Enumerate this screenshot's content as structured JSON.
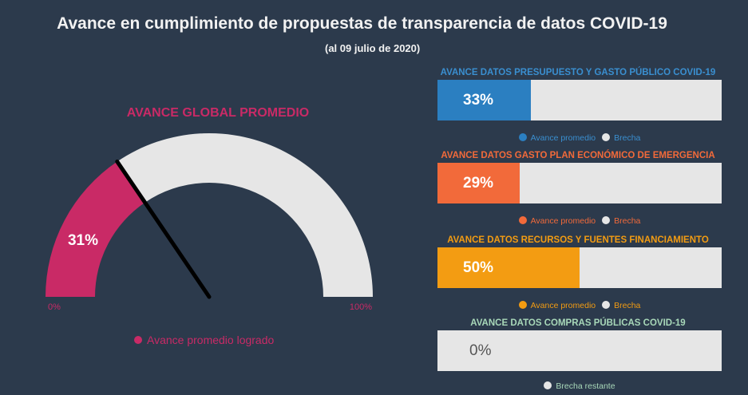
{
  "title": "Avance en cumplimiento de propuestas de transparencia de datos COVID-19",
  "subtitle": "(al 09 julio de 2020)",
  "chart_data": [
    {
      "type": "gauge",
      "title": "AVANCE GLOBAL PROMEDIO",
      "value": 31,
      "value_label": "31%",
      "min_label": "0%",
      "max_label": "100%",
      "range": [
        0,
        100
      ],
      "legend": [
        "Avance promedio logrado"
      ],
      "colors": {
        "fill": "#c92a66",
        "remainder": "#e6e6e6",
        "needle": "#000000",
        "title": "#c92a66"
      }
    },
    {
      "type": "bar",
      "title": "AVANCE DATOS PRESUPUESTO Y GASTO PÚBLICO COVID-19",
      "value": 33,
      "value_label": "33%",
      "legend": [
        "Avance promedio",
        "Brecha"
      ],
      "colors": {
        "fill": "#2b7fc1",
        "remainder": "#e6e6e6",
        "title": "#3a8fd0",
        "legend_text": "#3a8fd0"
      }
    },
    {
      "type": "bar",
      "title": "AVANCE DATOS GASTO PLAN ECONÓMICO DE EMERGENCIA",
      "value": 29,
      "value_label": "29%",
      "legend": [
        "Avance promedio",
        "Brecha"
      ],
      "colors": {
        "fill": "#f26a3a",
        "remainder": "#e6e6e6",
        "title": "#f26a3a",
        "legend_text": "#f26a3a"
      }
    },
    {
      "type": "bar",
      "title": "AVANCE DATOS RECURSOS Y FUENTES FINANCIAMIENTO",
      "value": 50,
      "value_label": "50%",
      "legend": [
        "Avance promedio",
        "Brecha"
      ],
      "colors": {
        "fill": "#f39c12",
        "remainder": "#e6e6e6",
        "title": "#f39c12",
        "legend_text": "#f39c12"
      }
    },
    {
      "type": "bar",
      "title": "AVANCE DATOS COMPRAS PÚBLICAS COVID-19",
      "value": 0,
      "value_label": "0%",
      "legend": [
        "Brecha restante"
      ],
      "colors": {
        "fill": "#2b9b6a",
        "remainder": "#e6e6e6",
        "title": "#a8d8b9",
        "legend_text": "#a8d8b9"
      }
    }
  ]
}
